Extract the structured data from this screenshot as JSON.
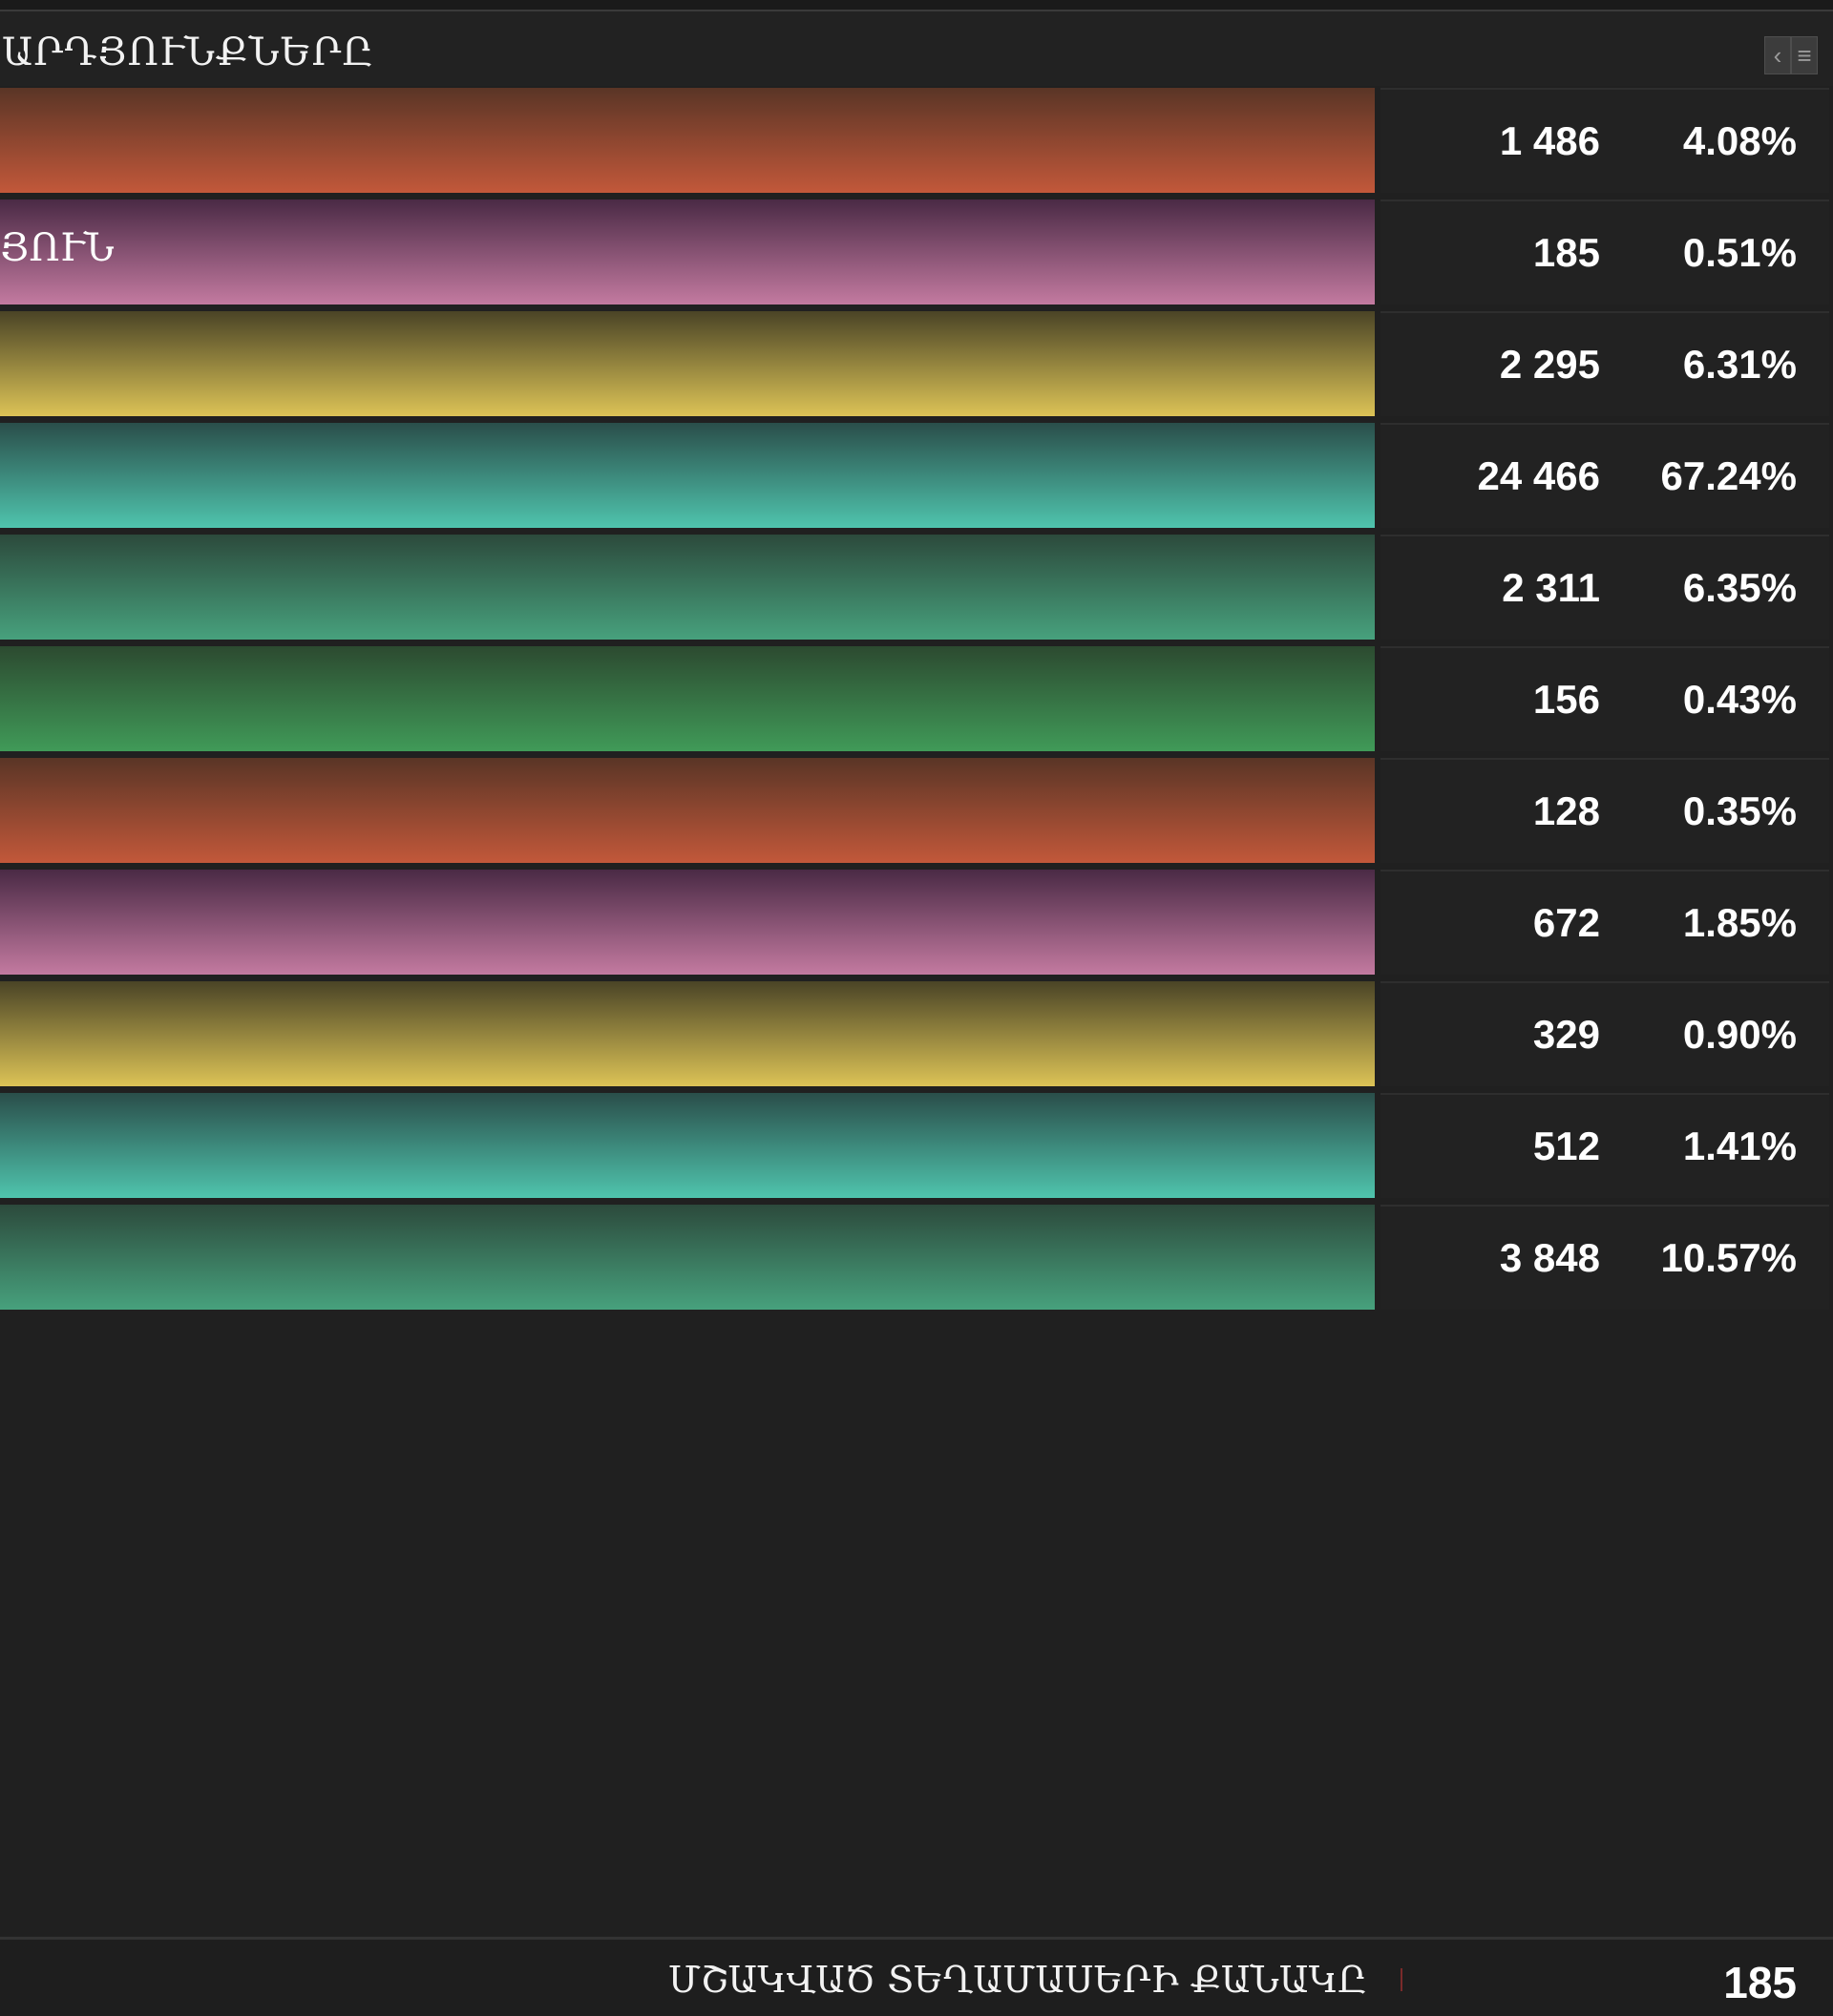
{
  "header": {
    "title": "ԱՐԴՅՈՒՆՔՆԵՐԸ",
    "collapse_icon": "chevron-left-icon",
    "menu_icon": "hamburger-menu-icon"
  },
  "rows": [
    {
      "label": "",
      "count": "1 486",
      "percent": "4.08%",
      "color": "orange",
      "top": "#5a3526",
      "bottom": "#c2583a"
    },
    {
      "label": "ՅՈՒՆ",
      "count": "185",
      "percent": "0.51%",
      "color": "pink",
      "top": "#4a2a45",
      "bottom": "#c37aa0"
    },
    {
      "label": "",
      "count": "2 295",
      "percent": "6.31%",
      "color": "yellow",
      "top": "#4a4426",
      "bottom": "#dcc356"
    },
    {
      "label": "",
      "count": "24 466",
      "percent": "67.24%",
      "color": "turquoise",
      "top": "#2a4e4a",
      "bottom": "#4fc4ad"
    },
    {
      "label": "",
      "count": "2 311",
      "percent": "6.35%",
      "color": "teal-green",
      "top": "#2c4a3c",
      "bottom": "#47a17d"
    },
    {
      "label": "",
      "count": "156",
      "percent": "0.43%",
      "color": "green",
      "top": "#2c4a30",
      "bottom": "#409a58"
    },
    {
      "label": "",
      "count": "128",
      "percent": "0.35%",
      "color": "orange",
      "top": "#5a3526",
      "bottom": "#c2583a"
    },
    {
      "label": "",
      "count": "672",
      "percent": "1.85%",
      "color": "pink",
      "top": "#4a2a45",
      "bottom": "#c37aa0"
    },
    {
      "label": "",
      "count": "329",
      "percent": "0.90%",
      "color": "yellow",
      "top": "#4a4426",
      "bottom": "#dcc356"
    },
    {
      "label": "",
      "count": "512",
      "percent": "1.41%",
      "color": "turquoise",
      "top": "#2a4e4a",
      "bottom": "#4fc4ad"
    },
    {
      "label": "",
      "count": "3 848",
      "percent": "10.57%",
      "color": "teal-green",
      "top": "#2c4a3c",
      "bottom": "#47a17d"
    }
  ],
  "footer": {
    "label": "ՄՇԱԿՎԱԾ ՏԵՂԱՄԱՍԵՐԻ ՔԱՆԱԿԸ",
    "value": "185"
  }
}
